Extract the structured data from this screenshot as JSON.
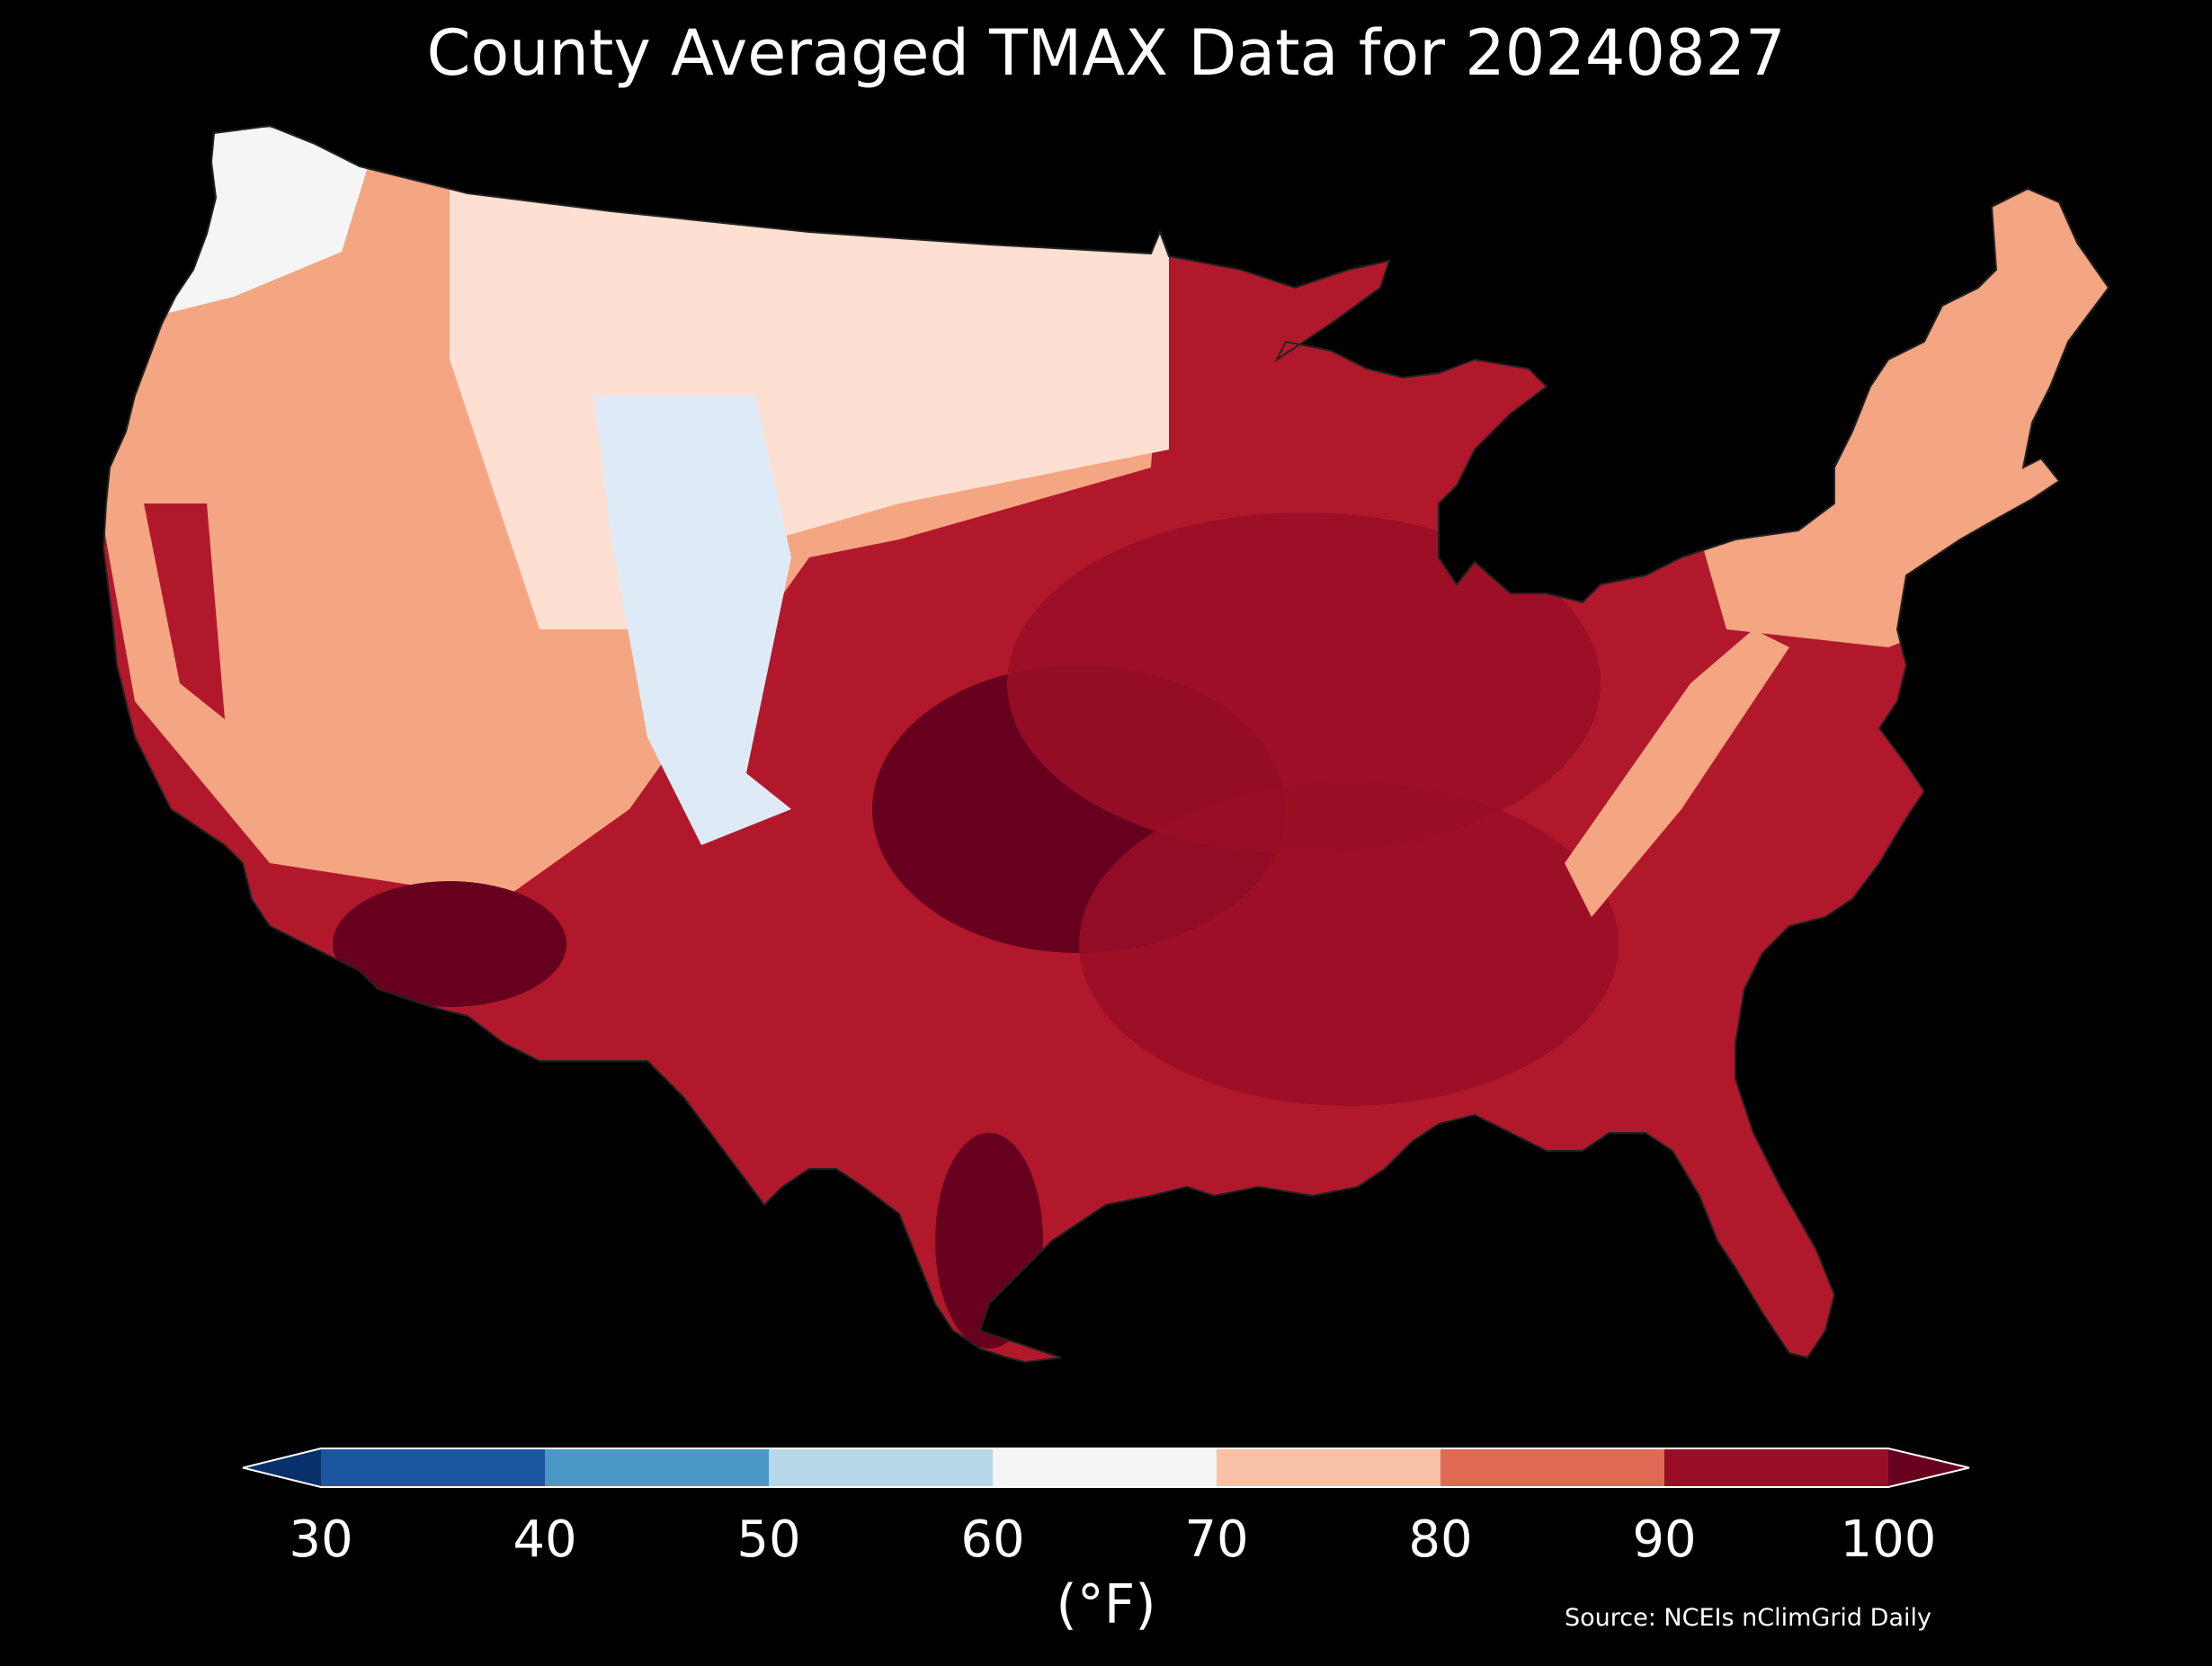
{
  "title": "County Averaged TMAX Data for 20240827",
  "colorbar": {
    "ticks": [
      "30",
      "40",
      "50",
      "60",
      "70",
      "80",
      "90",
      "100"
    ],
    "bins": [
      {
        "range": "<30",
        "color": "#08306b"
      },
      {
        "range": "30-40",
        "color": "#1b57a0"
      },
      {
        "range": "40-50",
        "color": "#4b98c8"
      },
      {
        "range": "50-60",
        "color": "#b7d7e9"
      },
      {
        "range": "60-70",
        "color": "#f5f5f5"
      },
      {
        "range": "70-80",
        "color": "#f9c1a5"
      },
      {
        "range": "80-90",
        "color": "#df6a53"
      },
      {
        "range": "90-100",
        "color": "#990e26"
      },
      {
        "range": ">100",
        "color": "#67001f"
      }
    ],
    "unit_label": "(°F)"
  },
  "source": "Source: NCEIs nClimGrid Daily",
  "map": {
    "region": "Contiguous United States",
    "variable": "TMAX",
    "date": "20240827",
    "regional_temps_F": [
      {
        "region": "Pacific Northwest coast",
        "color": "#f5f5f5",
        "range": "60-70"
      },
      {
        "region": "Wyoming / Colorado Rockies",
        "color": "#deebf7",
        "range": "50-60"
      },
      {
        "region": "Northern Plains",
        "color": "#fde0d2",
        "range": "70-80"
      },
      {
        "region": "Great Basin",
        "color": "#f4a582",
        "range": "70-80"
      },
      {
        "region": "Central Valley CA",
        "color": "#b2182b",
        "range": "90-100"
      },
      {
        "region": "Desert Southwest",
        "color": "#67001f",
        "range": ">100"
      },
      {
        "region": "Kansas / Oklahoma",
        "color": "#67001f",
        "range": ">100"
      },
      {
        "region": "Midwest / Ohio Valley",
        "color": "#990e26",
        "range": "90-100"
      },
      {
        "region": "Southeast",
        "color": "#b2182b",
        "range": "90-100"
      },
      {
        "region": "Appalachians",
        "color": "#f4a582",
        "range": "80-90"
      },
      {
        "region": "Northeast / New England",
        "color": "#f4a582",
        "range": "70-80"
      },
      {
        "region": "South Texas",
        "color": "#67001f",
        "range": ">100"
      }
    ]
  }
}
